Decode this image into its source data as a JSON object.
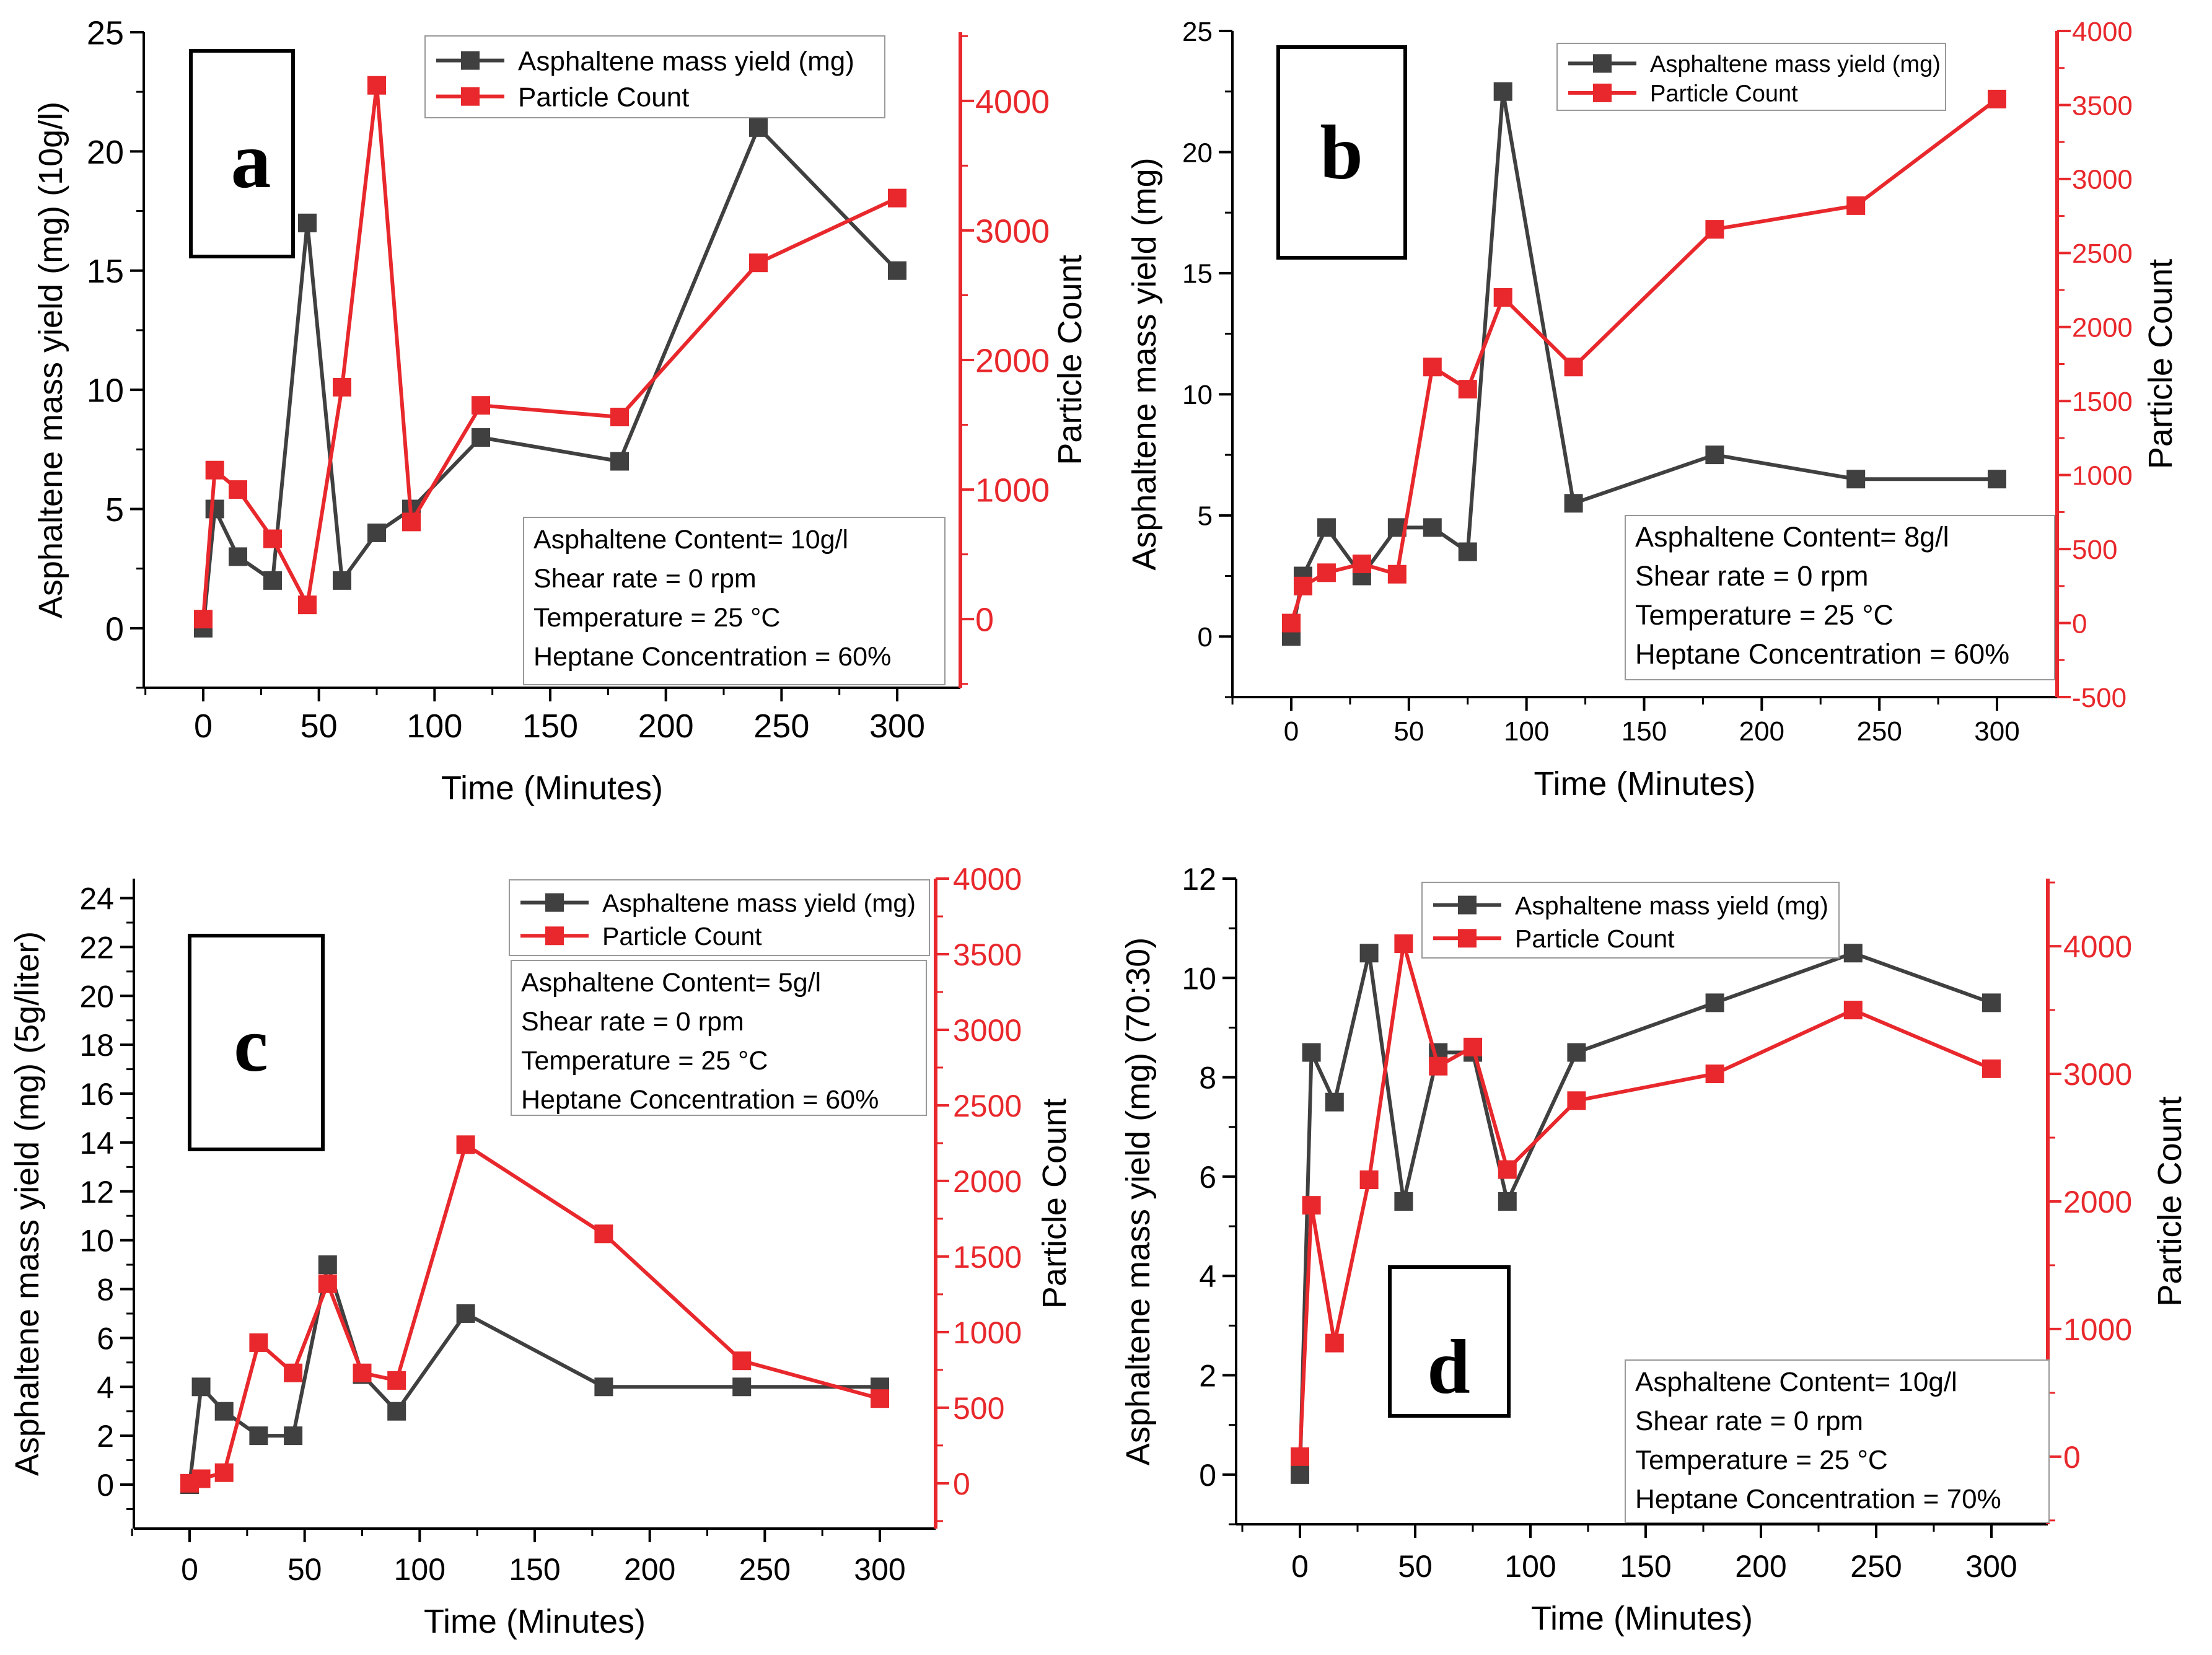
{
  "colors": {
    "yield": "#404040",
    "count": "#e8282c",
    "axis": "#000000"
  },
  "chart_data": [
    {
      "panel_label": "a",
      "type": "line",
      "xlabel": "Time (Minutes)",
      "ylabel": "Asphaltene mass yield (mg) (10g/l)",
      "y2label": "Particle Count",
      "xlim": [
        -25,
        315
      ],
      "ylim": [
        -2.5,
        25
      ],
      "y2lim": [
        -530,
        4530
      ],
      "xticks": [
        "0",
        "50",
        "100",
        "150",
        "200",
        "250",
        "300"
      ],
      "yticks": [
        "0",
        "5",
        "10",
        "15",
        "20",
        "25"
      ],
      "y2ticks": [
        "0",
        "1000",
        "2000",
        "3000",
        "4000"
      ],
      "legend": [
        "Asphaltene mass yield (mg)",
        "Particle Count"
      ],
      "info": [
        "Asphaltene Content= 10g/l",
        "Shear rate = 0 rpm",
        "Temperature = 25 °C",
        "Heptane Concentration = 60%"
      ],
      "series": [
        {
          "name": "Asphaltene mass yield (mg)",
          "x": [
            0,
            5,
            15,
            30,
            45,
            60,
            75,
            90,
            120,
            180,
            240,
            300
          ],
          "values": [
            0,
            5,
            3,
            2,
            17,
            2,
            4,
            5,
            8,
            7,
            21,
            15
          ]
        },
        {
          "name": "Particle Count",
          "x": [
            0,
            5,
            15,
            30,
            45,
            60,
            75,
            90,
            120,
            180,
            240,
            300
          ],
          "values": [
            0,
            1150,
            1000,
            620,
            110,
            1790,
            4120,
            750,
            1650,
            1560,
            2750,
            3250
          ]
        }
      ]
    },
    {
      "panel_label": "b",
      "type": "line",
      "xlabel": "Time (Minutes)",
      "ylabel": "Asphaltene mass yield (mg)",
      "y2label": "Particle Count",
      "xlim": [
        -25,
        315
      ],
      "ylim": [
        -2.5,
        25
      ],
      "y2lim": [
        -500,
        4000
      ],
      "xticks": [
        "0",
        "50",
        "100",
        "150",
        "200",
        "250",
        "300"
      ],
      "yticks": [
        "0",
        "5",
        "10",
        "15",
        "20",
        "25"
      ],
      "y2ticks": [
        "-500",
        "0",
        "500",
        "1000",
        "1500",
        "2000",
        "2500",
        "3000",
        "3500",
        "4000"
      ],
      "legend": [
        "Asphaltene mass yield (mg)",
        "Particle Count"
      ],
      "info": [
        "Asphaltene Content= 8g/l",
        "Shear rate = 0 rpm",
        "Temperature = 25 °C",
        "Heptane Concentration = 60%"
      ],
      "series": [
        {
          "name": "Asphaltene mass yield (mg)",
          "x": [
            0,
            5,
            15,
            30,
            45,
            60,
            75,
            90,
            120,
            180,
            240,
            300
          ],
          "values": [
            0,
            2.5,
            4.5,
            2.5,
            4.5,
            4.5,
            3.5,
            22.5,
            5.5,
            7.5,
            6.5,
            6.5
          ]
        },
        {
          "name": "Particle Count",
          "x": [
            0,
            5,
            15,
            30,
            45,
            60,
            75,
            90,
            120,
            180,
            240,
            300
          ],
          "values": [
            0,
            250,
            340,
            400,
            330,
            1730,
            1580,
            2200,
            1730,
            2660,
            2820,
            3540
          ]
        }
      ]
    },
    {
      "panel_label": "c",
      "type": "line",
      "xlabel": "Time (Minutes)",
      "ylabel": "Asphaltene mass yield (mg) (5g/liter)",
      "y2label": "Particle Count",
      "xlim": [
        -25,
        315
      ],
      "ylim": [
        -1.8,
        24.8
      ],
      "y2lim": [
        -300,
        4000
      ],
      "xticks": [
        "0",
        "50",
        "100",
        "150",
        "200",
        "250",
        "300"
      ],
      "yticks": [
        "0",
        "2",
        "4",
        "6",
        "8",
        "10",
        "12",
        "14",
        "16",
        "18",
        "20",
        "22",
        "24"
      ],
      "y2ticks": [
        "0",
        "500",
        "1000",
        "1500",
        "2000",
        "2500",
        "3000",
        "3500",
        "4000"
      ],
      "legend": [
        "Asphaltene mass yield (mg)",
        "Particle Count"
      ],
      "info": [
        "Asphaltene Content= 5g/l",
        "Shear rate = 0 rpm",
        "Temperature = 25 °C",
        "Heptane Concentration = 60%"
      ],
      "series": [
        {
          "name": "Asphaltene mass yield (mg)",
          "x": [
            0,
            5,
            15,
            30,
            45,
            60,
            75,
            90,
            120,
            180,
            240,
            300
          ],
          "values": [
            0,
            4,
            3,
            2,
            2,
            9,
            4.5,
            3,
            7,
            4,
            4,
            4
          ]
        },
        {
          "name": "Particle Count",
          "x": [
            0,
            5,
            15,
            30,
            45,
            60,
            75,
            90,
            120,
            180,
            240,
            300
          ],
          "values": [
            0,
            30,
            70,
            930,
            730,
            1320,
            730,
            680,
            2240,
            1650,
            810,
            560
          ]
        }
      ]
    },
    {
      "panel_label": "d",
      "type": "line",
      "xlabel": "Time (Minutes)",
      "ylabel": "Asphaltene mass yield (mg) (70:30)",
      "y2label": "Particle Count",
      "xlim": [
        -25,
        315
      ],
      "ylim": [
        -1,
        12
      ],
      "y2lim": [
        -530,
        4530
      ],
      "xticks": [
        "0",
        "50",
        "100",
        "150",
        "200",
        "250",
        "300"
      ],
      "yticks": [
        "0",
        "2",
        "4",
        "6",
        "8",
        "10",
        "12"
      ],
      "y2ticks": [
        "0",
        "1000",
        "2000",
        "3000",
        "4000"
      ],
      "legend": [
        "Asphaltene mass yield (mg)",
        "Particle Count"
      ],
      "info": [
        "Asphaltene Content= 10g/l",
        "Shear rate = 0 rpm",
        "Temperature = 25 °C",
        "Heptane Concentration = 70%"
      ],
      "series": [
        {
          "name": "Asphaltene mass yield (mg)",
          "x": [
            0,
            5,
            15,
            30,
            45,
            60,
            75,
            90,
            120,
            180,
            240,
            300
          ],
          "values": [
            0,
            8.5,
            7.5,
            10.5,
            5.5,
            8.5,
            8.5,
            5.5,
            8.5,
            9.5,
            10.5,
            9.5
          ]
        },
        {
          "name": "Particle Count",
          "x": [
            0,
            5,
            15,
            30,
            45,
            60,
            75,
            90,
            120,
            180,
            240,
            300
          ],
          "values": [
            0,
            1970,
            890,
            2170,
            4020,
            3060,
            3210,
            2250,
            2790,
            3000,
            3500,
            3040
          ]
        }
      ]
    }
  ]
}
